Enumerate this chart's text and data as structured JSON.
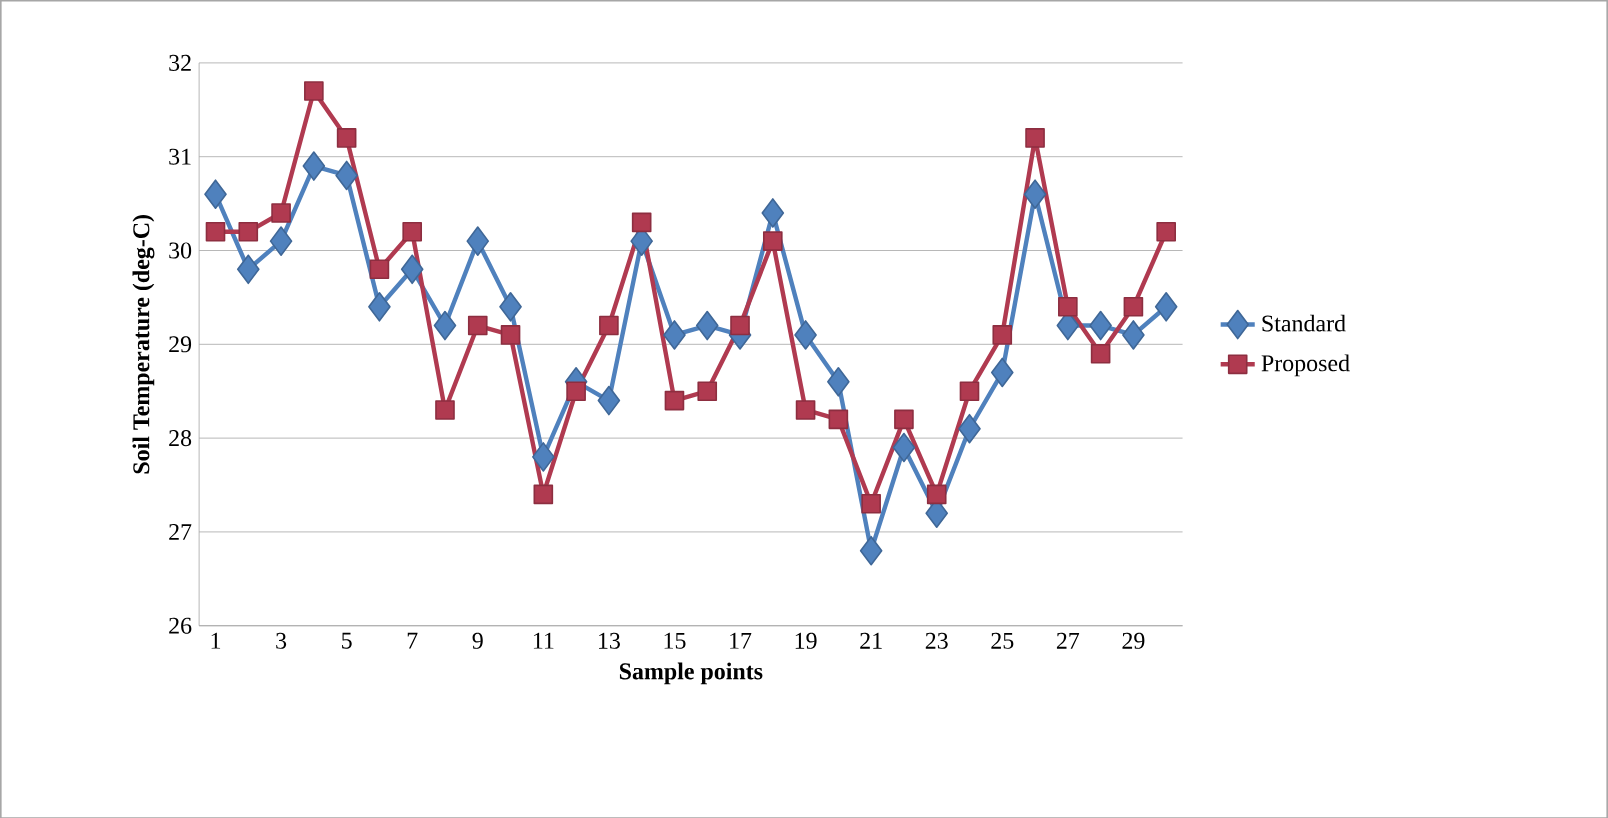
{
  "chart_data": {
    "type": "line",
    "xlabel": "Sample points",
    "ylabel": "Soil Temperature (deg-C)",
    "categories": [
      "1",
      null,
      "3",
      null,
      "5",
      null,
      "7",
      null,
      "9",
      null,
      "11",
      null,
      "13",
      null,
      "15",
      null,
      "17",
      null,
      "19",
      null,
      "21",
      null,
      "23",
      null,
      "25",
      null,
      "27",
      null,
      "29",
      null
    ],
    "series": [
      {
        "name": "Standard",
        "color": "#4f81bd",
        "marker": "diamond",
        "values": [
          30.6,
          29.8,
          30.1,
          30.9,
          30.8,
          29.4,
          29.8,
          29.2,
          30.1,
          29.4,
          27.8,
          28.6,
          28.4,
          30.1,
          29.1,
          29.2,
          29.1,
          30.4,
          29.1,
          28.6,
          26.8,
          27.9,
          27.2,
          28.1,
          28.7,
          30.6,
          29.2,
          29.2,
          29.1,
          29.4
        ]
      },
      {
        "name": "Proposed",
        "color": "#b03a50",
        "marker": "square",
        "values": [
          30.2,
          30.2,
          30.4,
          31.7,
          31.2,
          29.8,
          30.2,
          28.3,
          29.2,
          29.1,
          27.4,
          28.5,
          29.2,
          30.3,
          28.4,
          28.5,
          29.2,
          30.1,
          28.3,
          28.2,
          27.3,
          28.2,
          27.4,
          28.5,
          29.1,
          31.2,
          29.4,
          28.9,
          29.4,
          30.2
        ]
      }
    ],
    "ylim": [
      26,
      32
    ],
    "yticks": [
      26,
      27,
      28,
      29,
      30,
      31,
      32
    ],
    "grid": "y",
    "legend": "right"
  }
}
